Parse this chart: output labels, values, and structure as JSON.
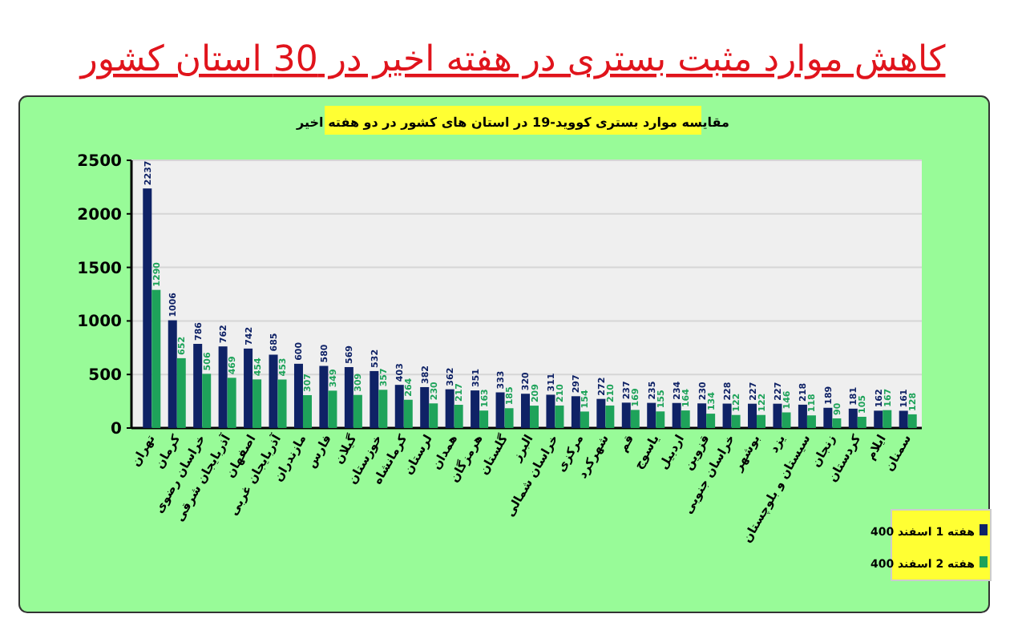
{
  "chart_data": {
    "type": "bar",
    "title": "کاهش موارد مثبت بستری در هفته اخیر در 30 استان کشور",
    "subtitle": "مقایسه موارد بستری کووید-19 در استان های کشور در دو هفته اخیر",
    "categories": [
      "تهران",
      "کرمان",
      "خراسان رضوی",
      "آذربایجان شرقی",
      "اصفهان",
      "آذربایجان غربی",
      "مازندران",
      "فارس",
      "گیلان",
      "خوزستان",
      "کرمانشاه",
      "لرستان",
      "همدان",
      "هرمزگان",
      "گلستان",
      "البرز",
      "خراسان شمالی",
      "مرکزی",
      "شهرکرد",
      "قم",
      "یاسوج",
      "اردبیل",
      "قزوین",
      "خراسان جنوبی",
      "بوشهر",
      "یزد",
      "سیستان و بلوچستان",
      "زنجان",
      "کردستان",
      "ایلام",
      "سمنان"
    ],
    "series": [
      {
        "name": "هفته 1 اسفند 400",
        "color": "#0f2266",
        "values": [
          2237,
          1006,
          786,
          762,
          742,
          685,
          600,
          580,
          569,
          532,
          403,
          382,
          362,
          351,
          333,
          320,
          311,
          297,
          272,
          237,
          235,
          234,
          230,
          228,
          227,
          227,
          218,
          189,
          181,
          162,
          161
        ]
      },
      {
        "name": "هفته 2 اسفند 400",
        "color": "#1ea35a",
        "values": [
          1290,
          652,
          506,
          469,
          454,
          453,
          307,
          349,
          309,
          357,
          264,
          230,
          217,
          163,
          185,
          209,
          210,
          154,
          210,
          169,
          155,
          164,
          134,
          122,
          122,
          146,
          118,
          90,
          105,
          167,
          128
        ]
      }
    ],
    "ylim": [
      0,
      2500
    ],
    "yticks": [
      0,
      500,
      1000,
      1500,
      2000,
      2500
    ],
    "grid": "y",
    "legend": "bottom right",
    "data_labels": true
  }
}
